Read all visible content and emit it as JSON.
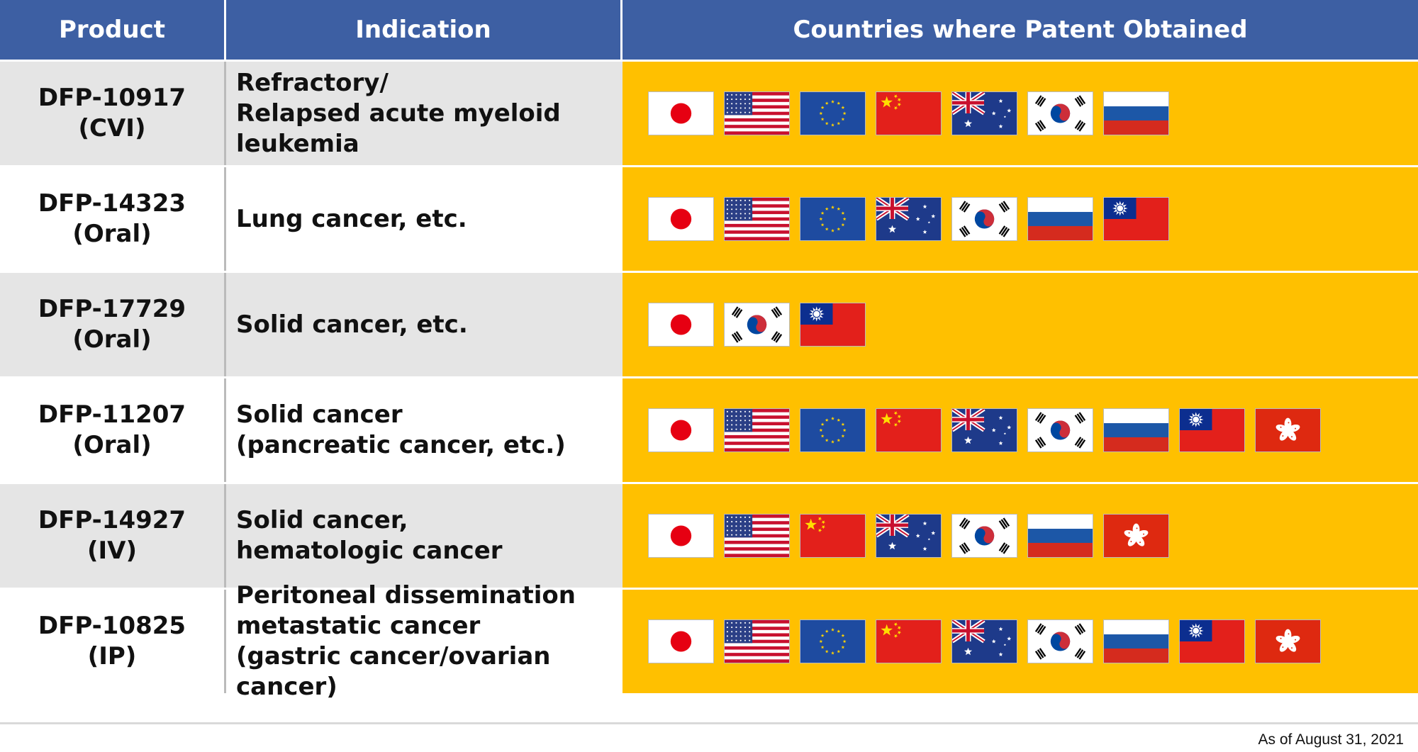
{
  "header": {
    "product": "Product",
    "indication": "Indication",
    "countries": "Countries where Patent Obtained"
  },
  "rows": [
    {
      "product_code": "DFP-10917",
      "product_route": "(CVI)",
      "indication_lines": [
        "Refractory/",
        "Relapsed acute myeloid",
        "leukemia"
      ],
      "flags": [
        "japan-flag",
        "usa-flag",
        "eu-flag",
        "china-flag",
        "australia-flag",
        "korea-flag",
        "russia-flag"
      ]
    },
    {
      "product_code": "DFP-14323",
      "product_route": "(Oral)",
      "indication_lines": [
        "Lung cancer, etc."
      ],
      "flags": [
        "japan-flag",
        "usa-flag",
        "eu-flag",
        "australia-flag",
        "korea-flag",
        "russia-flag",
        "taiwan-flag"
      ]
    },
    {
      "product_code": "DFP-17729",
      "product_route": "(Oral)",
      "indication_lines": [
        "Solid cancer, etc."
      ],
      "flags": [
        "japan-flag",
        "korea-flag",
        "taiwan-flag"
      ]
    },
    {
      "product_code": "DFP-11207",
      "product_route": "(Oral)",
      "indication_lines": [
        "Solid cancer",
        "(pancreatic cancer, etc.)"
      ],
      "flags": [
        "japan-flag",
        "usa-flag",
        "eu-flag",
        "china-flag",
        "australia-flag",
        "korea-flag",
        "russia-flag",
        "taiwan-flag",
        "hongkong-flag"
      ]
    },
    {
      "product_code": "DFP-14927",
      "product_route": "(IV)",
      "indication_lines": [
        "Solid cancer,",
        "hematologic cancer"
      ],
      "flags": [
        "japan-flag",
        "usa-flag",
        "china-flag",
        "australia-flag",
        "korea-flag",
        "russia-flag",
        "hongkong-flag"
      ]
    },
    {
      "product_code": "DFP-10825",
      "product_route": "(IP)",
      "indication_lines": [
        "Peritoneal dissemination",
        "metastatic cancer",
        "(gastric cancer/ovarian",
        "cancer)"
      ],
      "flags": [
        "japan-flag",
        "usa-flag",
        "eu-flag",
        "china-flag",
        "australia-flag",
        "korea-flag",
        "russia-flag",
        "taiwan-flag",
        "hongkong-flag"
      ]
    }
  ],
  "footnote": "As of August 31, 2021",
  "colors": {
    "header_bg": "#3D5FA3",
    "shade_bg": "#E5E5E5",
    "countries_bg": "#FFC000"
  }
}
